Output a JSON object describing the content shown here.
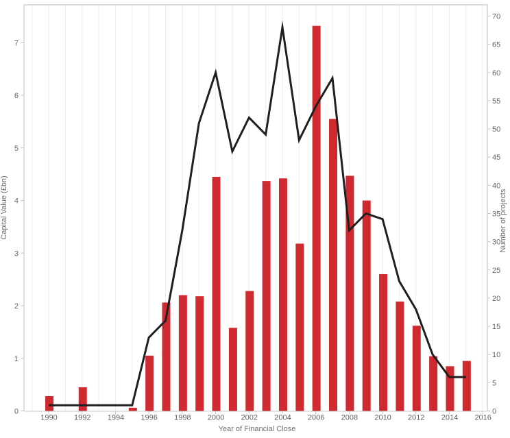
{
  "chart_data": {
    "type": "bar+line dual-axis",
    "title": "",
    "xlabel": "Year of Financial Close",
    "ylabel_left": "Capital Value (£bn)",
    "ylabel_right": "Number of projects",
    "grid": "vertical-yearly-gridlines",
    "legend": "none",
    "x": [
      1990,
      1991,
      1992,
      1993,
      1994,
      1995,
      1996,
      1997,
      1998,
      1999,
      2000,
      2001,
      2002,
      2003,
      2004,
      2005,
      2006,
      2007,
      2008,
      2009,
      2010,
      2011,
      2012,
      2013,
      2014,
      2015
    ],
    "series": [
      {
        "name": "Capital Value (£bn)",
        "type": "bar",
        "axis": "left",
        "color": "#ce2a2f",
        "values": [
          0.28,
          0,
          0.45,
          0,
          0,
          0.06,
          1.05,
          2.06,
          2.2,
          2.18,
          4.45,
          1.58,
          2.28,
          4.37,
          4.42,
          3.18,
          7.32,
          5.55,
          4.47,
          4.0,
          2.6,
          2.08,
          1.62,
          1.04,
          0.85,
          0.95
        ]
      },
      {
        "name": "Number of projects",
        "type": "line",
        "axis": "right",
        "color": "#1f1f1f",
        "values": [
          1,
          1,
          1,
          1,
          1,
          1,
          13,
          16,
          32,
          51,
          60,
          46,
          52,
          49,
          68,
          48,
          54,
          59,
          32,
          35,
          34,
          23,
          18,
          10,
          6,
          6
        ]
      }
    ],
    "left_axis": {
      "ticks": [
        0,
        1,
        2,
        3,
        4,
        5,
        6,
        7
      ],
      "range": [
        0,
        7.72
      ]
    },
    "right_axis": {
      "ticks": [
        0,
        5,
        10,
        15,
        20,
        25,
        30,
        35,
        40,
        45,
        50,
        55,
        60,
        65,
        70
      ],
      "range": [
        0,
        72
      ]
    },
    "x_axis": {
      "labeled_ticks": [
        1990,
        1992,
        1994,
        1996,
        1998,
        2000,
        2002,
        2004,
        2006,
        2008,
        2010,
        2012,
        2014,
        2016
      ],
      "gridline_years": [
        1989,
        1990,
        1991,
        1992,
        1993,
        1994,
        1995,
        1996,
        1997,
        1998,
        1999,
        2000,
        2001,
        2002,
        2003,
        2004,
        2005,
        2006,
        2007,
        2008,
        2009,
        2010,
        2011,
        2012,
        2013,
        2014,
        2015,
        2016
      ],
      "range": [
        1988.52,
        2016.28
      ]
    },
    "colors": {
      "bar": "#ce2a2f",
      "line": "#1f1f1f",
      "gridline": "#ececec",
      "axis_border_top": "#cdcdcd",
      "axis_border_bottom": "#c9c9c9",
      "axis_border_side": "#bdbdbd",
      "tick_mark": "#c4c4c4",
      "tick_label": "#646464",
      "axis_title": "#6e6e6e",
      "background": "#ffffff"
    }
  }
}
